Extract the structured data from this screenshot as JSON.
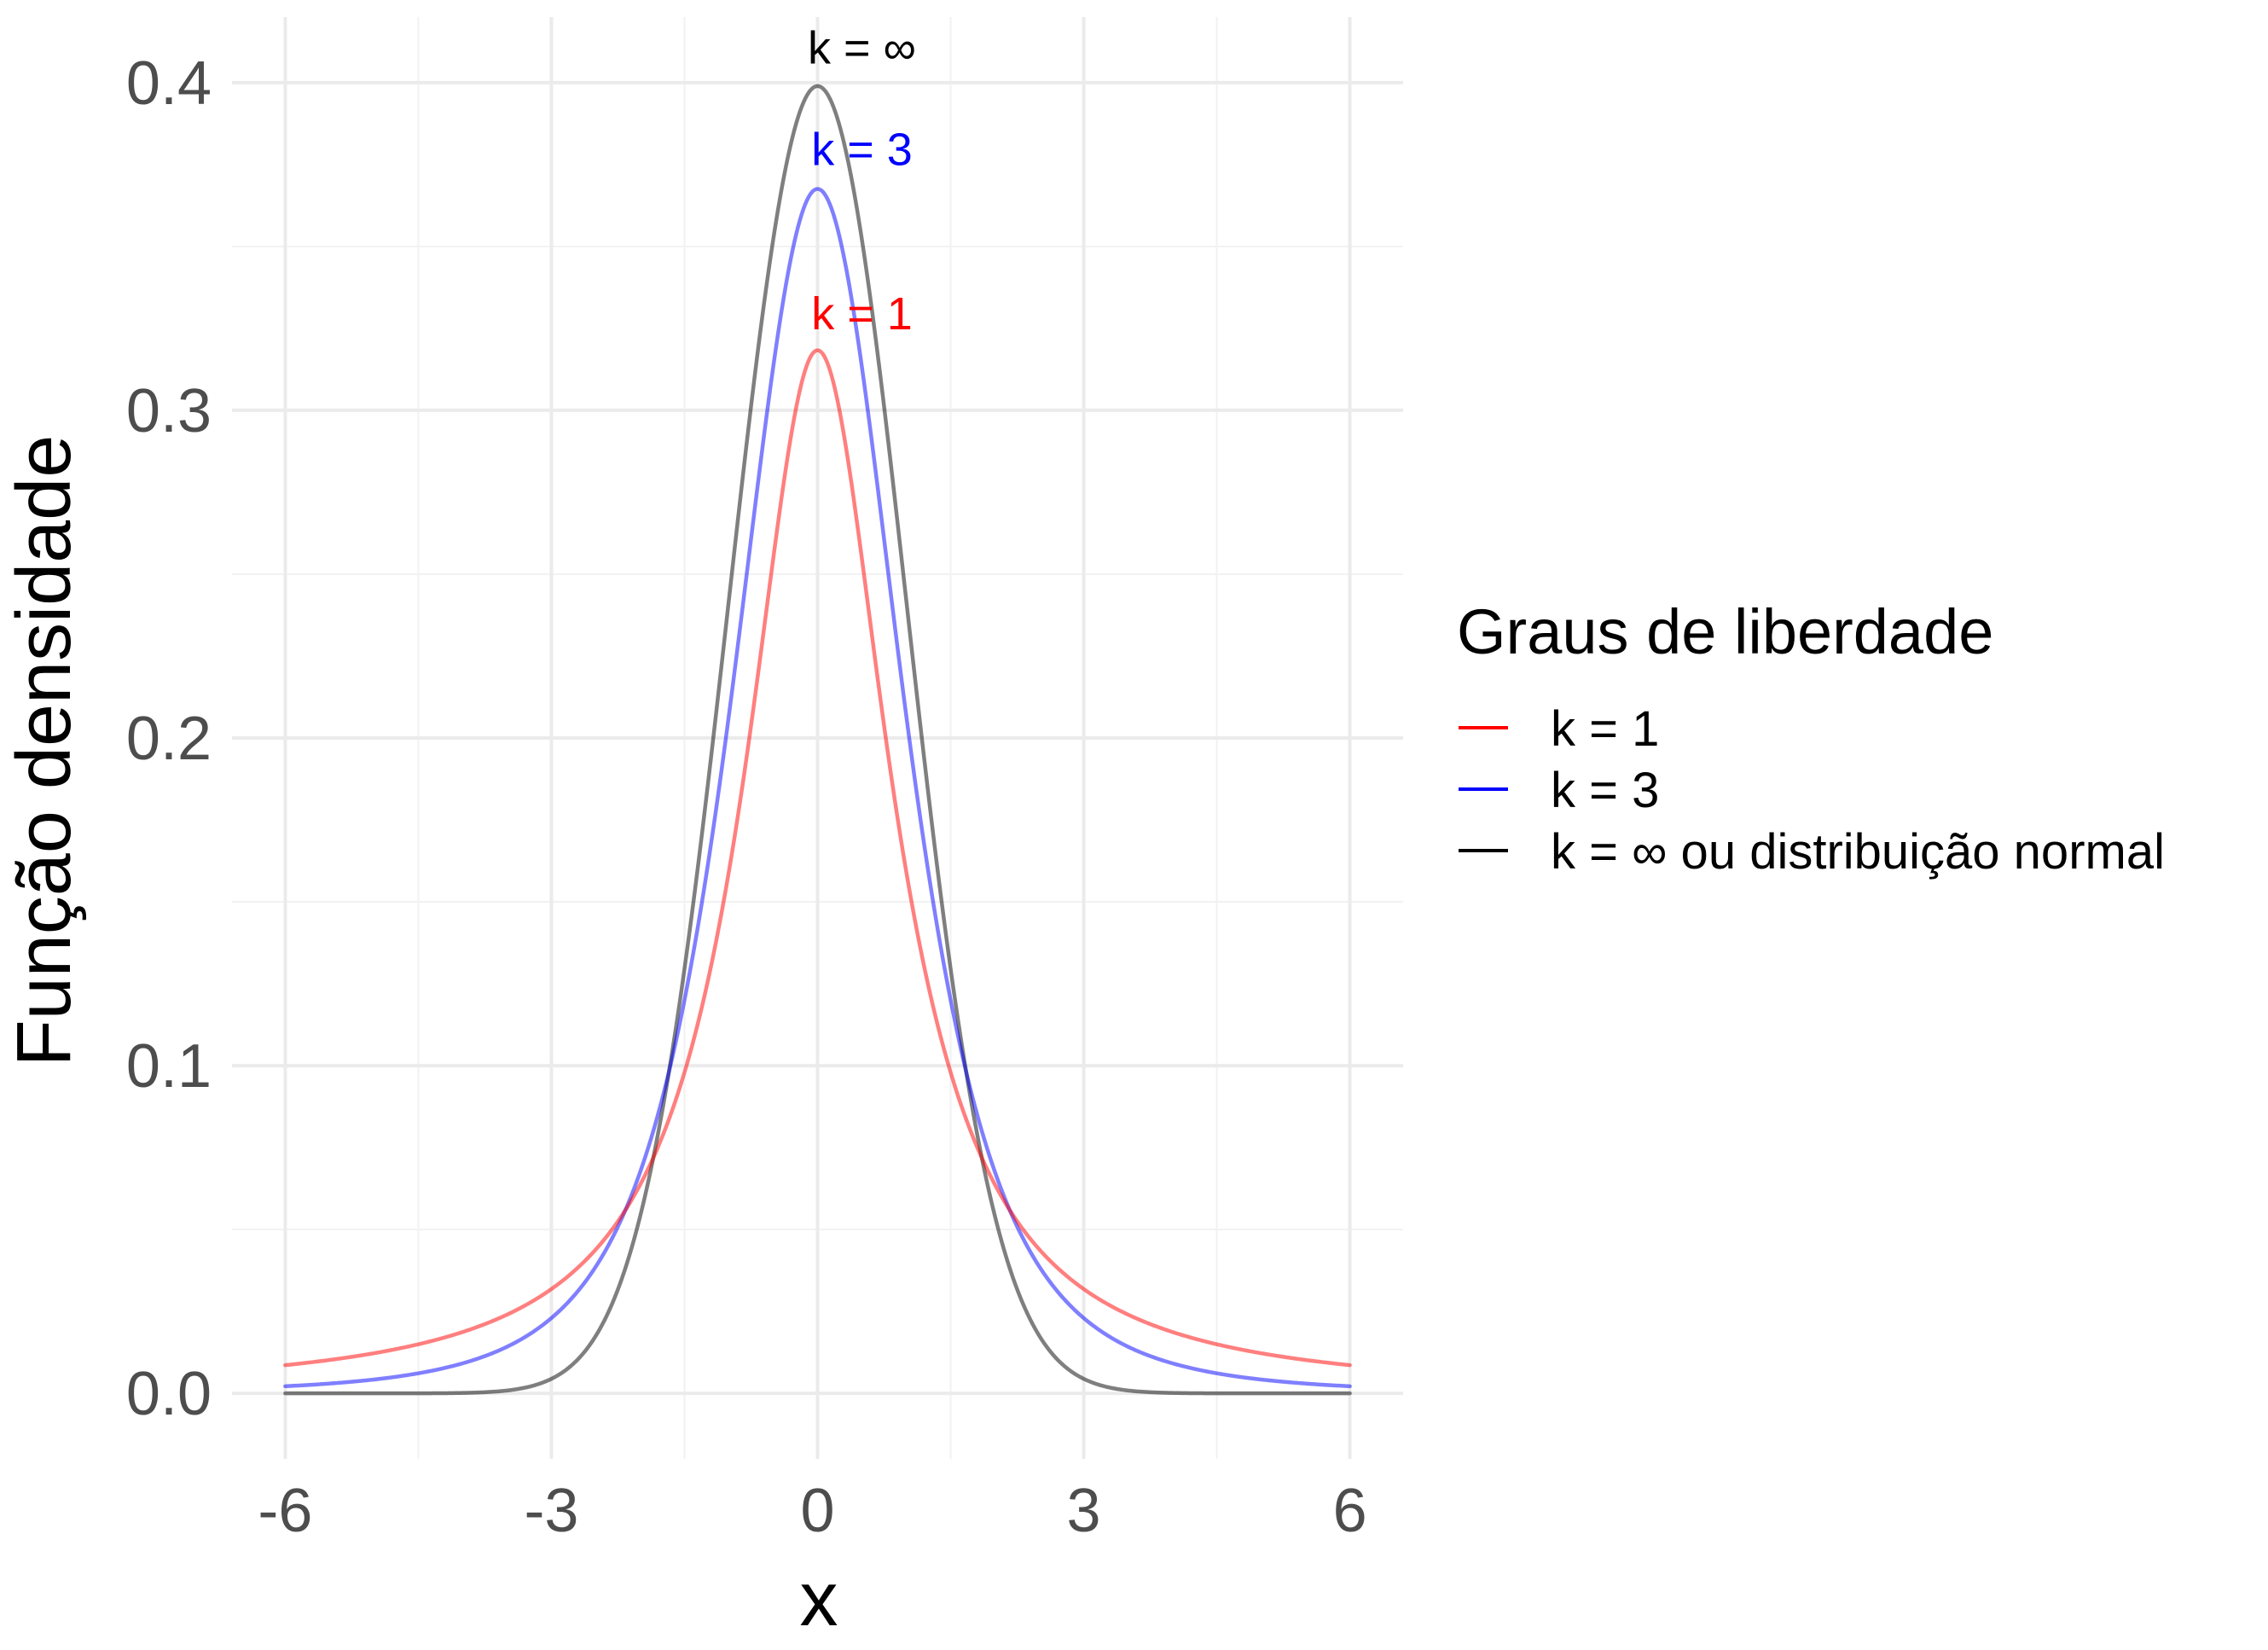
{
  "chart_data": {
    "type": "line",
    "xlabel": "x",
    "ylabel": "Função densidade",
    "xlim": [
      -6,
      6
    ],
    "ylim": [
      0,
      0.4
    ],
    "x_ticks": [
      "-6",
      "-3",
      "0",
      "3",
      "6"
    ],
    "y_ticks": [
      "0.0",
      "0.1",
      "0.2",
      "0.3",
      "0.4"
    ],
    "grid": true,
    "legend": {
      "title": "Graus de liberdade",
      "position": "right"
    },
    "series": [
      {
        "name": "k = 1",
        "df": 1,
        "color": "#ff0000",
        "annotation": "k = 1",
        "peak": 0.318
      },
      {
        "name": "k = 3",
        "df": 3,
        "color": "#0000ff",
        "annotation": "k = 3",
        "peak": 0.368
      },
      {
        "name": "k =  ∞  ou distribuição normal",
        "df": "infinity",
        "color": "#000000",
        "annotation": "k =  ∞",
        "peak": 0.399
      }
    ]
  }
}
